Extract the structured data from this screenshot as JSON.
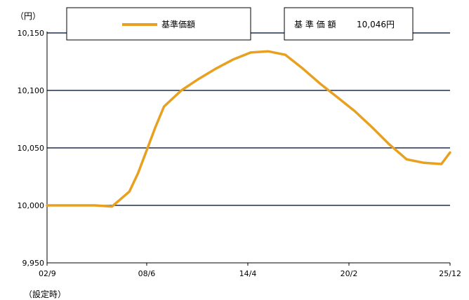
{
  "chart_data": {
    "type": "line",
    "unit_label": "（円）",
    "x_start_note": "（設定時）",
    "legend": {
      "series_label": "基準価額"
    },
    "value_box": {
      "label": "基 準 価 額",
      "value": "10,046円"
    },
    "x_ticks": [
      "02/9",
      "08/6",
      "14/4",
      "20/2",
      "25/12"
    ],
    "y_ticks": [
      "9,950",
      "10,000",
      "10,050",
      "10,100",
      "10,150"
    ],
    "ylim": [
      9950,
      10150
    ],
    "grid": true,
    "line_color": "#E8A020",
    "grid_color": "#1F2E4A",
    "series": [
      {
        "name": "基準価額",
        "x": [
          "2002-09",
          "2003-06",
          "2004-06",
          "2005-06",
          "2006-06",
          "2007-06",
          "2007-12",
          "2008-06",
          "2008-12",
          "2009-06",
          "2010-06",
          "2011-06",
          "2012-06",
          "2013-06",
          "2014-06",
          "2015-06",
          "2016-06",
          "2017-06",
          "2018-06",
          "2019-06",
          "2020-06",
          "2021-06",
          "2022-06",
          "2023-06",
          "2024-06",
          "2025-06",
          "2025-12"
        ],
        "y": [
          10000,
          10000,
          10000,
          10000,
          9999,
          10012,
          10028,
          10048,
          10068,
          10086,
          10100,
          10110,
          10119,
          10127,
          10133,
          10134,
          10131,
          10119,
          10106,
          10094,
          10082,
          10068,
          10053,
          10040,
          10037,
          10036,
          10046
        ]
      }
    ]
  }
}
